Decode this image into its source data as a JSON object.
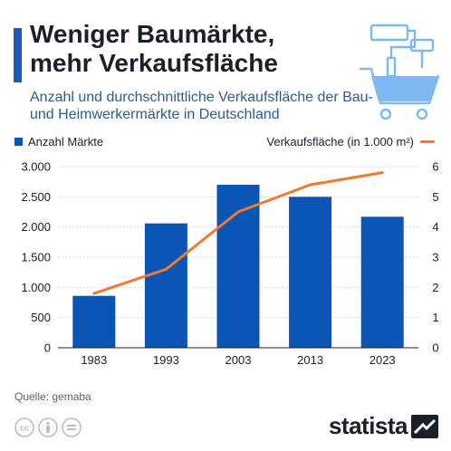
{
  "header": {
    "title": "Weniger Baumärkte, mehr Verkaufsfläche",
    "subtitle": "Anzahl und durchschnittliche Verkaufsfläche der Bau- und Heimwerkermärkte in Deutschland"
  },
  "legend": {
    "bars": "Anzahl Märkte",
    "line": "Verkaufsfläche (in 1.000 m²)"
  },
  "colors": {
    "accent": "#1a5bb5",
    "bar": "#0b55b5",
    "line": "#f07a30",
    "grid": "#d6dbe2",
    "subtitle": "#2f5c8a",
    "icon": "#7eb8f0"
  },
  "icons": {
    "hero": "shopping-cart-with-paint-roller-icon",
    "license": [
      "cc-icon",
      "attribution-icon",
      "no-derivatives-icon"
    ],
    "brand": "statista-logo-mark"
  },
  "chart_data": {
    "type": "bar",
    "categories": [
      "1983",
      "1993",
      "2003",
      "2013",
      "2023"
    ],
    "series": [
      {
        "name": "Anzahl Märkte",
        "type": "bar",
        "axis": "left",
        "values": [
          860,
          2060,
          2700,
          2500,
          2170
        ]
      },
      {
        "name": "Verkaufsfläche (in 1.000 m²)",
        "type": "line",
        "axis": "right",
        "values": [
          1.8,
          2.6,
          4.5,
          5.4,
          5.8
        ]
      }
    ],
    "y_left": {
      "ylim": [
        0,
        3000
      ],
      "ticks": [
        0,
        500,
        1000,
        1500,
        2000,
        2500,
        3000
      ],
      "tick_labels": [
        "0",
        "500",
        "1.000",
        "1.500",
        "2.000",
        "2.500",
        "3.000"
      ]
    },
    "y_right": {
      "ylim": [
        0,
        6
      ],
      "ticks": [
        0,
        1,
        2,
        3,
        4,
        5,
        6
      ],
      "tick_labels": [
        "0",
        "1",
        "2",
        "3",
        "4",
        "5",
        "6"
      ]
    },
    "grid": true,
    "legend_placement": "top"
  },
  "footer": {
    "source": "Quelle: gemaba",
    "brand": "statista"
  }
}
